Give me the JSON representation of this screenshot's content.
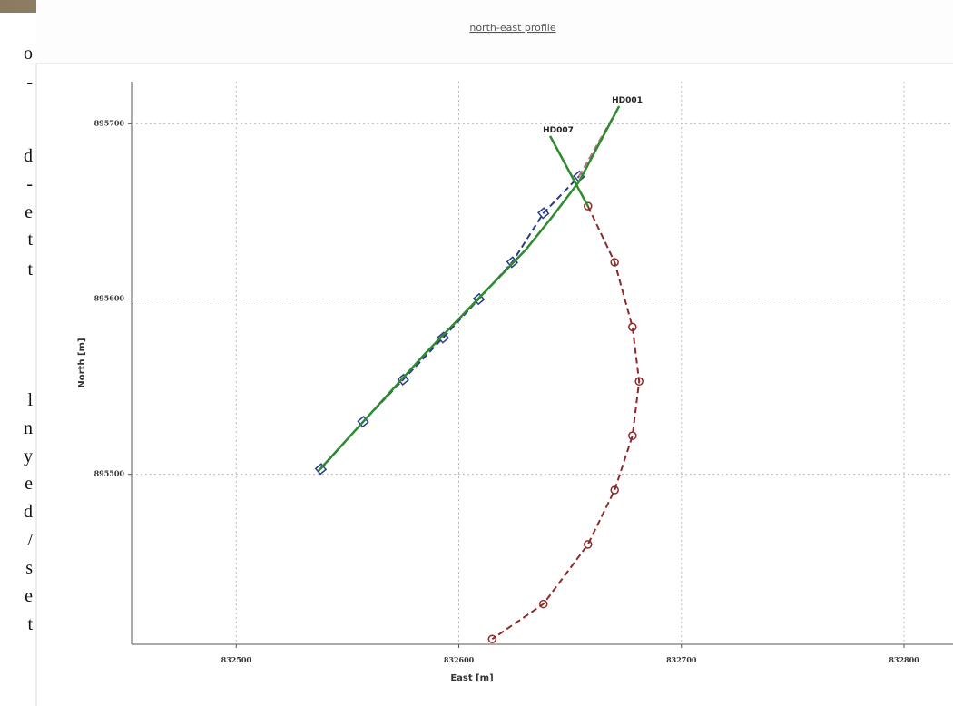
{
  "side_text": [
    "o",
    "-",
    "d",
    "-",
    "e",
    "t",
    "t",
    "l",
    "n",
    "y",
    "e",
    "d",
    "/",
    "s",
    "e",
    "t"
  ],
  "chart_data": {
    "type": "line",
    "title": "north-east profile",
    "x_label": "East [m]",
    "y_label": "North [m]",
    "xlim": [
      832453,
      832822
    ],
    "ylim": [
      895403,
      895724
    ],
    "xticks": [
      832500,
      832600,
      832700,
      832800
    ],
    "yticks": [
      895500,
      895600,
      895700
    ],
    "grid": true,
    "series": [
      {
        "color": "#2a3a8c",
        "dash": true,
        "marker": "square",
        "x": [
          832538,
          832557,
          832575,
          832593,
          832609,
          832624,
          832638,
          832654
        ],
        "values": [
          895503,
          895530,
          895554,
          895578,
          895600,
          895621,
          895649,
          895670
        ]
      },
      {
        "color": "#c07080",
        "dash": true,
        "marker": "none",
        "x": [
          832654,
          832672
        ],
        "values": [
          895670,
          895710
        ]
      },
      {
        "name": "HD001",
        "color": "#2e8b2e",
        "dash": false,
        "marker": "none",
        "x": [
          832537,
          832585,
          832630,
          832642,
          832654,
          832672
        ],
        "values": [
          895502,
          895569,
          895628,
          895647,
          895667,
          895710
        ]
      },
      {
        "color": "#8b2a2a",
        "dash": true,
        "marker": "circle",
        "x": [
          832658,
          832670,
          832678,
          832681,
          832678,
          832670,
          832658,
          832638,
          832615
        ],
        "values": [
          895653,
          895621,
          895584,
          895553,
          895522,
          895491,
          895460,
          895426,
          895406
        ]
      },
      {
        "name": "HD007",
        "color": "#2e8b2e",
        "dash": false,
        "marker": "none",
        "x": [
          832658,
          832641
        ],
        "values": [
          895653,
          895693
        ]
      }
    ]
  }
}
